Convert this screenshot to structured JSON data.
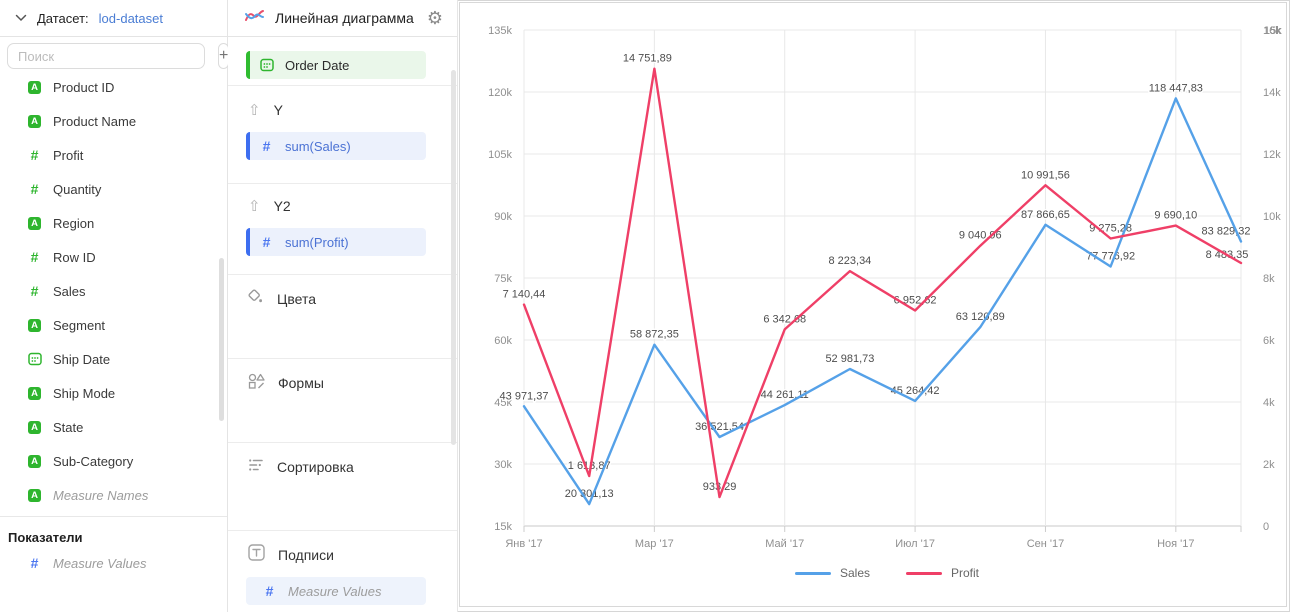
{
  "colors": {
    "field_green": "#2eb52e",
    "accent_blue": "#3d6ef0",
    "link_blue": "#4a7dd4",
    "sales_line": "#55a1e8",
    "profit_line": "#ef3f67"
  },
  "left_panel": {
    "dataset_label": "Датасет:",
    "dataset_name": "lod-dataset",
    "search_placeholder": "Поиск",
    "add_button": "+",
    "fields": [
      {
        "name": "Product ID",
        "icon": "text"
      },
      {
        "name": "Product Name",
        "icon": "text"
      },
      {
        "name": "Profit",
        "icon": "number"
      },
      {
        "name": "Quantity",
        "icon": "number"
      },
      {
        "name": "Region",
        "icon": "text"
      },
      {
        "name": "Row ID",
        "icon": "number"
      },
      {
        "name": "Sales",
        "icon": "number"
      },
      {
        "name": "Segment",
        "icon": "text"
      },
      {
        "name": "Ship Date",
        "icon": "date"
      },
      {
        "name": "Ship Mode",
        "icon": "text"
      },
      {
        "name": "State",
        "icon": "text"
      },
      {
        "name": "Sub-Category",
        "icon": "text"
      },
      {
        "name": "Measure Names",
        "icon": "text",
        "italic": true
      }
    ],
    "measures_header": "Показатели",
    "measures": [
      {
        "name": "Measure Values",
        "icon": "number-blue",
        "italic": true
      }
    ]
  },
  "config_panel": {
    "title": "Линейная диаграмма",
    "x_pill": "Order Date",
    "y_label": "Y",
    "y_pill": "sum(Sales)",
    "y2_label": "Y2",
    "y2_pill": "sum(Profit)",
    "colors_label": "Цвета",
    "shapes_label": "Формы",
    "sort_label": "Сортировка",
    "labels_label": "Подписи",
    "labels_pill": "Measure Values"
  },
  "chart_data": {
    "type": "line",
    "points_per_series": 12,
    "x_tick_labels": [
      "Янв '17",
      "Мар '17",
      "Май '17",
      "Июл '17",
      "Сен '17",
      "Ноя '17"
    ],
    "left_axis": {
      "labels": [
        "15k",
        "30k",
        "45k",
        "60k",
        "75k",
        "90k",
        "105k",
        "120k",
        "135k"
      ],
      "min": 15000,
      "max": 135000
    },
    "right_axis": {
      "labels": [
        "0",
        "2k",
        "4k",
        "6k",
        "8k",
        "10k",
        "12k",
        "14k"
      ],
      "top_overlap": [
        "16k",
        "15k"
      ],
      "min": 0,
      "max": 16000
    },
    "grid": true,
    "legend_position": "bottom",
    "series": [
      {
        "name": "Sales",
        "axis": "left",
        "color": "#55a1e8",
        "values": [
          43971.37,
          20301.13,
          58872.35,
          36521.54,
          44261.11,
          52981.73,
          45264.42,
          63120.89,
          87866.65,
          77776.92,
          118447.83,
          83829.32
        ],
        "labels": [
          "43 971,37",
          "20 301,13",
          "58 872,35",
          "36 521,54",
          "44 261,11",
          "52 981,73",
          "45 264,42",
          "63 120,89",
          "87 866,65",
          "77 776,92",
          "118 447,83",
          "83 829,32"
        ],
        "label_offsets": {
          "11": [
            -15,
            0
          ]
        }
      },
      {
        "name": "Profit",
        "axis": "right",
        "color": "#ef3f67",
        "values": [
          7140.44,
          1613.87,
          14751.89,
          933.29,
          6342.68,
          8223.34,
          6952.62,
          9040.96,
          10991.56,
          9275.28,
          9690.1,
          8483.35
        ],
        "labels": [
          "7 140,44",
          "1 613,87",
          "14 751,89",
          "933,29",
          "6 342,68",
          "8 223,34",
          "6 952,62",
          "9 040,96",
          "10 991,56",
          "9 275,28",
          "9 690,10",
          "8 483,35"
        ],
        "label_offsets": {
          "2": [
            -7,
            0
          ],
          "11": [
            -14,
            2
          ]
        }
      }
    ]
  }
}
